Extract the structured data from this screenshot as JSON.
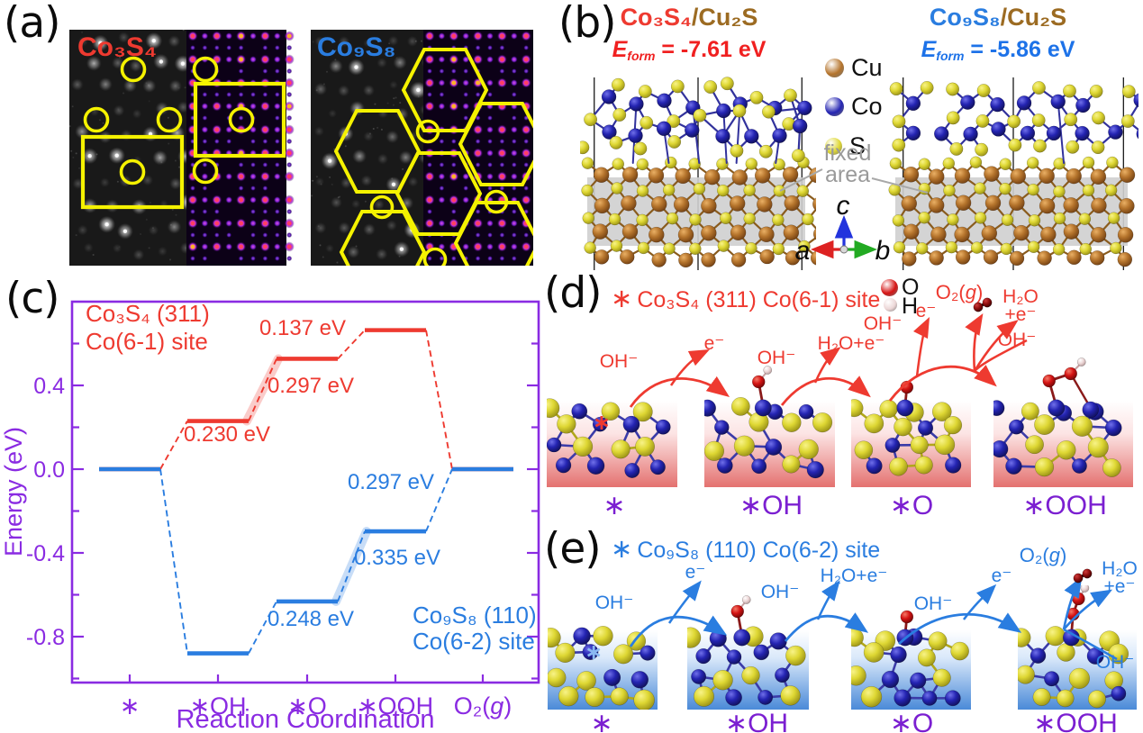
{
  "figure": {
    "panel_labels": {
      "a": "(a)",
      "b": "(b)",
      "c": "(c)",
      "d": "(d)",
      "e": "(e)"
    },
    "accent_purple": "#7b1fd1",
    "annotation_yellow": "#f5f200"
  },
  "panel_a": {
    "pairs": [
      {
        "formula": "Co₃S₄",
        "color": "#ee3a30"
      },
      {
        "formula": "Co₉S₈",
        "color": "#2a7de0"
      }
    ]
  },
  "panel_b": {
    "structures": [
      {
        "formula_left": "Co₃S₄",
        "formula_right": "/Cu₂S",
        "formula_color": "#ee3a30",
        "eform_symbol": "E",
        "eform_sub": "form",
        "eform_value": " = -7.61 eV",
        "eform_color": "#f02020"
      },
      {
        "formula_left": "Co₉S₈",
        "formula_right": "/Cu₂S",
        "formula_color": "#2a7de0",
        "eform_symbol": "E",
        "eform_sub": "form",
        "eform_value": " = -5.86 eV",
        "eform_color": "#1d72e8"
      }
    ],
    "legend": [
      {
        "label": "Cu",
        "color": "#b5742c"
      },
      {
        "label": "Co",
        "color": "#2424b2"
      },
      {
        "label": "S",
        "color": "#ded733"
      }
    ],
    "fixed_area": {
      "line1": "fixed",
      "line2": "area"
    },
    "axis_gizmo": {
      "up": "c",
      "left": "a",
      "right": "b",
      "up_color": "#2233dd",
      "left_color": "#dd2222",
      "right_color": "#22aa22"
    }
  },
  "chart_data": {
    "type": "line",
    "categories": [
      "∗",
      "∗OH",
      "∗O",
      "∗OOH",
      "O₂(g)"
    ],
    "xlabel": "Reaction Coordination",
    "ylabel": "Energy (eV)",
    "ytick_labels": [
      "0.4",
      "0.0",
      "-0.4",
      "-0.8"
    ],
    "ytick_values": [
      0.4,
      0.0,
      -0.4,
      -0.8
    ],
    "ylim": [
      -1.02,
      0.8
    ],
    "grid": false,
    "legend_position": "inside",
    "axis_color": "#8a2be2",
    "series": [
      {
        "name": "Co₃S₄ (311) Co(6-1) site",
        "name_lines": [
          "Co₃S₄ (311)",
          "Co(6-1) site"
        ],
        "color": "#ee3a30",
        "values": [
          0.0,
          0.23,
          0.527,
          0.664,
          0.0
        ],
        "step_labels": [
          "0.230 eV",
          "0.297 eV",
          "0.137 eV",
          ""
        ],
        "highlight_segment": 1
      },
      {
        "name": "Co₉S₈ (110) Co(6-2) site",
        "name_lines": [
          "Co₉S₈ (110)",
          "Co(6-2) site"
        ],
        "color": "#2a7de0",
        "values": [
          0.0,
          -0.88,
          -0.632,
          -0.297,
          0.0
        ],
        "step_labels": [
          "",
          "0.248 eV",
          "0.335 eV",
          "0.297 eV"
        ],
        "highlight_segment": 2
      }
    ]
  },
  "panel_d": {
    "site_star": "∗",
    "title": "Co₃S₄ (311) Co(6-1) site",
    "color": "#ee3a30",
    "legend": [
      {
        "label": "O",
        "color": "#d51414"
      },
      {
        "label": "H",
        "color": "#ecd6d6"
      }
    ],
    "steps": [
      "∗",
      "∗OH",
      "∗O",
      "∗OOH"
    ],
    "arrows": [
      {
        "reactant": "OH⁻",
        "product": "e⁻"
      },
      {
        "reactant": "OH⁻",
        "product": "H₂O+e⁻"
      },
      {
        "reactant": "OH⁻",
        "product": "e⁻"
      },
      {
        "reactant": "OH⁻",
        "product_line1": "H₂O",
        "product_line2": "+e⁻",
        "gas": "O₂(g)"
      }
    ]
  },
  "panel_e": {
    "site_star": "∗",
    "title": "Co₉S₈ (110) Co(6-2) site",
    "color": "#2a7de0",
    "steps": [
      "∗",
      "∗OH",
      "∗O",
      "∗OOH"
    ],
    "arrows": [
      {
        "reactant": "OH⁻",
        "product": "e⁻"
      },
      {
        "reactant": "OH⁻",
        "product": "H₂O+e⁻"
      },
      {
        "reactant": "OH⁻",
        "product": "e⁻"
      },
      {
        "reactant": "OH⁻",
        "product_line1": "H₂O",
        "product_line2": "+e⁻",
        "gas": "O₂(g)"
      }
    ]
  }
}
